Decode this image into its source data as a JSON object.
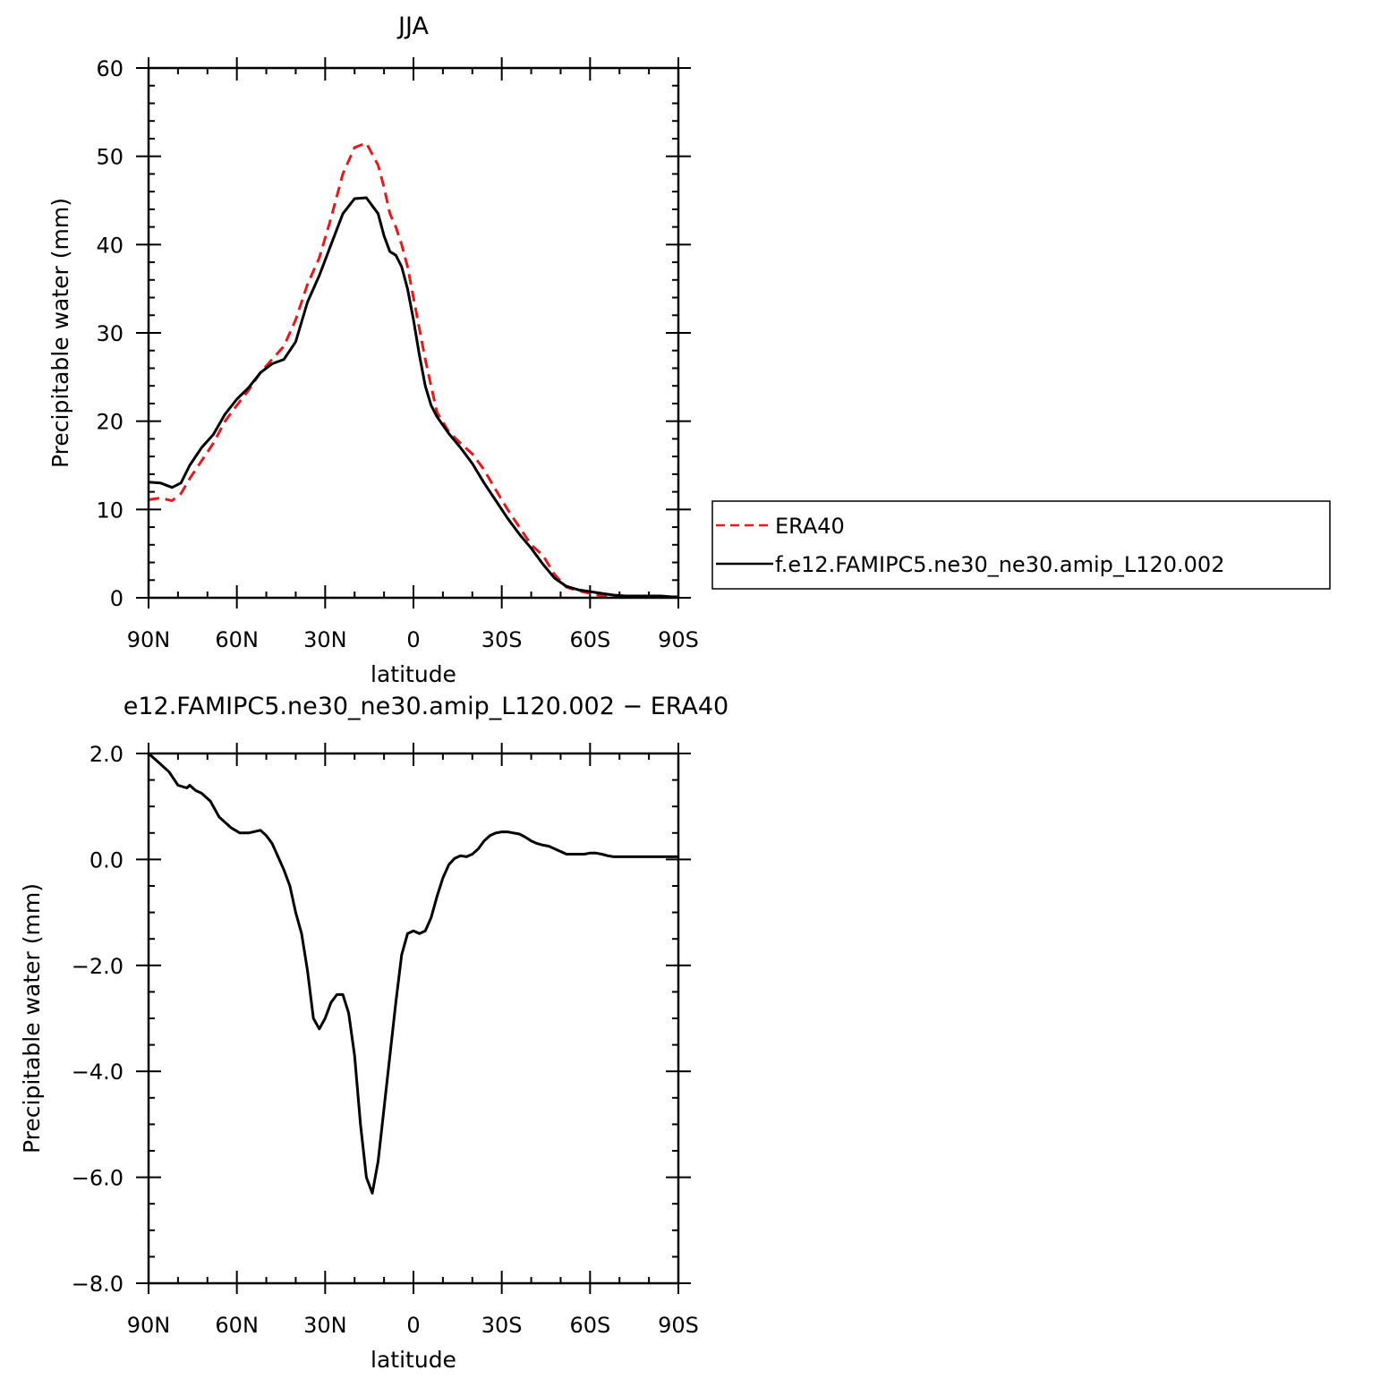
{
  "chart_data": [
    {
      "type": "line",
      "title": "JJA",
      "xlabel": "latitude",
      "ylabel": "Precipitable water (mm)",
      "xlim": [
        90,
        -90
      ],
      "ylim": [
        0,
        60
      ],
      "xticks": [
        90,
        60,
        30,
        0,
        -30,
        -60,
        -90
      ],
      "xtick_labels": [
        "90N",
        "60N",
        "30N",
        "0",
        "30S",
        "60S",
        "90S"
      ],
      "yticks": [
        0,
        10,
        20,
        30,
        40,
        50,
        60
      ],
      "ytick_labels": [
        "0",
        "10",
        "20",
        "30",
        "40",
        "50",
        "60"
      ],
      "legend_position": "right",
      "series": [
        {
          "name": "ERA40",
          "color": "#e31a1c",
          "style": "dashed",
          "x": [
            90,
            86,
            82,
            79,
            76,
            72,
            68,
            64,
            60,
            56,
            52,
            48,
            44,
            40,
            36,
            32,
            28,
            24,
            20,
            16,
            12,
            10,
            8,
            6,
            4,
            2,
            0,
            -2,
            -4,
            -6,
            -8,
            -12,
            -16,
            -20,
            -24,
            -28,
            -32,
            -36,
            -40,
            -44,
            -48,
            -52,
            -56,
            -60,
            -64,
            -68,
            -72,
            -76,
            -80,
            -84,
            -88,
            -90
          ],
          "values": [
            11.1,
            11.3,
            11.0,
            11.8,
            13.5,
            15.5,
            17.5,
            20.0,
            21.8,
            23.5,
            25.5,
            27.0,
            28.5,
            31.5,
            35.5,
            38.5,
            43.0,
            48.0,
            51.0,
            51.5,
            49.0,
            46.5,
            43.5,
            42.0,
            40.0,
            37.5,
            34.0,
            30.5,
            27.0,
            24.0,
            21.0,
            18.8,
            17.5,
            16.3,
            14.5,
            12.2,
            10.0,
            8.0,
            6.0,
            4.8,
            2.6,
            1.2,
            0.8,
            0.5,
            0.2,
            0.1,
            0.1,
            0.1,
            0.1,
            0.1,
            0.1,
            0.1
          ]
        },
        {
          "name": "f.e12.FAMIPC5.ne30_ne30.amip_L120.002",
          "color": "#000000",
          "style": "solid",
          "x": [
            90,
            86,
            82,
            79,
            76,
            72,
            68,
            64,
            60,
            56,
            52,
            48,
            44,
            40,
            36,
            32,
            28,
            24,
            20,
            16,
            12,
            10,
            8,
            6,
            4,
            2,
            0,
            -2,
            -4,
            -6,
            -8,
            -12,
            -16,
            -20,
            -24,
            -28,
            -32,
            -36,
            -40,
            -44,
            -48,
            -52,
            -56,
            -60,
            -64,
            -68,
            -72,
            -76,
            -80,
            -84,
            -88,
            -90
          ],
          "values": [
            13.1,
            13.0,
            12.5,
            13.0,
            15.0,
            17.0,
            18.5,
            20.8,
            22.5,
            23.8,
            25.5,
            26.5,
            27.0,
            29.0,
            33.5,
            36.5,
            40.0,
            43.5,
            45.2,
            45.3,
            43.5,
            41.0,
            39.2,
            38.8,
            37.5,
            35.0,
            31.5,
            27.5,
            24.0,
            21.8,
            20.5,
            18.6,
            17.0,
            15.2,
            13.0,
            11.0,
            9.0,
            7.2,
            5.6,
            3.8,
            2.2,
            1.3,
            0.9,
            0.7,
            0.5,
            0.3,
            0.2,
            0.2,
            0.2,
            0.2,
            0.1,
            0.1
          ]
        }
      ]
    },
    {
      "type": "line",
      "title": "e12.FAMIPC5.ne30_ne30.amip_L120.002 − ERA40",
      "xlabel": "latitude",
      "ylabel": "Precipitable water (mm)",
      "xlim": [
        90,
        -90
      ],
      "ylim": [
        -8,
        2
      ],
      "xticks": [
        90,
        60,
        30,
        0,
        -30,
        -60,
        -90
      ],
      "xtick_labels": [
        "90N",
        "60N",
        "30N",
        "0",
        "30S",
        "60S",
        "90S"
      ],
      "yticks": [
        -8,
        -6,
        -4,
        -2,
        0,
        2
      ],
      "ytick_labels": [
        "−8.0",
        "−6.0",
        "−4.0",
        "−2.0",
        "0.0",
        "2.0"
      ],
      "series": [
        {
          "color": "#000000",
          "style": "solid",
          "x": [
            90,
            86,
            83,
            80,
            77,
            76,
            74,
            72,
            69,
            66,
            62,
            59,
            56,
            52,
            50,
            48,
            46,
            44,
            42,
            40,
            38,
            36,
            34,
            32,
            30,
            28,
            26,
            24,
            22,
            20,
            18,
            16,
            14,
            12,
            10,
            8,
            6,
            4,
            2,
            0,
            -2,
            -4,
            -6,
            -8,
            -10,
            -12,
            -14,
            -16,
            -18,
            -20,
            -22,
            -24,
            -26,
            -28,
            -30,
            -32,
            -34,
            -36,
            -38,
            -40,
            -42,
            -44,
            -46,
            -48,
            -50,
            -52,
            -54,
            -56,
            -58,
            -60,
            -62,
            -64,
            -66,
            -68,
            -70,
            -72,
            -74,
            -76,
            -78,
            -80,
            -82,
            -84,
            -86,
            -88,
            -90
          ],
          "values": [
            2.0,
            1.8,
            1.65,
            1.4,
            1.35,
            1.4,
            1.3,
            1.25,
            1.1,
            0.8,
            0.6,
            0.5,
            0.5,
            0.55,
            0.45,
            0.3,
            0.05,
            -0.2,
            -0.5,
            -1.0,
            -1.4,
            -2.1,
            -3.0,
            -3.2,
            -3.0,
            -2.7,
            -2.55,
            -2.55,
            -2.9,
            -3.7,
            -5.0,
            -6.0,
            -6.3,
            -5.7,
            -4.7,
            -3.7,
            -2.7,
            -1.8,
            -1.4,
            -1.35,
            -1.4,
            -1.35,
            -1.1,
            -0.7,
            -0.35,
            -0.1,
            0.02,
            0.07,
            0.05,
            0.1,
            0.2,
            0.35,
            0.45,
            0.5,
            0.52,
            0.52,
            0.5,
            0.48,
            0.42,
            0.35,
            0.3,
            0.27,
            0.25,
            0.2,
            0.15,
            0.1,
            0.1,
            0.1,
            0.1,
            0.12,
            0.12,
            0.1,
            0.07,
            0.05,
            0.05,
            0.05,
            0.05,
            0.05,
            0.05,
            0.05,
            0.05,
            0.05,
            0.05,
            0.05,
            0.05
          ]
        }
      ]
    }
  ]
}
